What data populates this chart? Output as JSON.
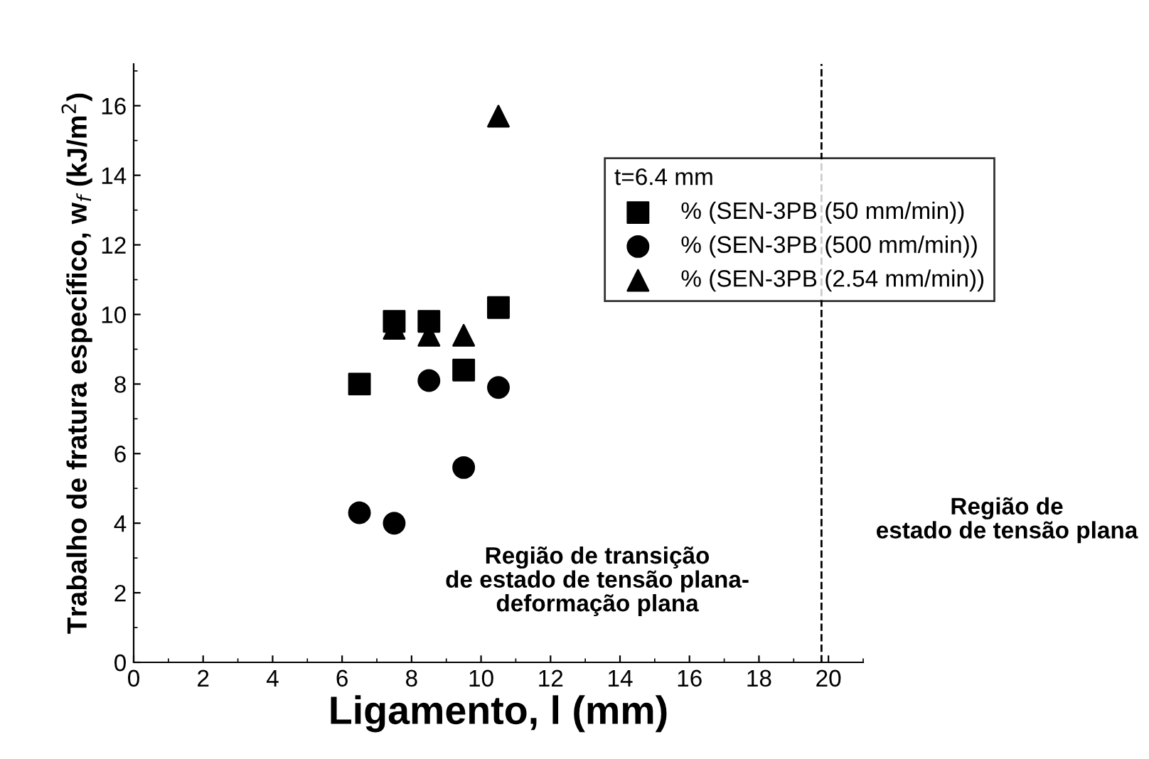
{
  "chart_data": {
    "type": "scatter",
    "xlabel": "Ligamento, l (mm)",
    "ylabel": "Trabalho de fratura específico, w$_{f}$ (kJ/m$^{2}$)",
    "legend_title": "t=6.4 mm",
    "legend": "top right",
    "series": [
      {
        "name": "% (SEN-3PB (50 mm/min))",
        "color": "#000000",
        "marker": "square",
        "x": [
          6.5,
          7.5,
          8.5,
          9.5,
          10.5
        ],
        "values": [
          8.0,
          9.8,
          9.8,
          8.4,
          10.2
        ]
      },
      {
        "name": "% (SEN-3PB (500 mm/min))",
        "color": "#000000",
        "marker": "circle",
        "x": [
          6.5,
          7.5,
          8.5,
          9.5,
          10.5
        ],
        "values": [
          4.3,
          4.0,
          8.1,
          5.6,
          7.9
        ]
      },
      {
        "name": "% (SEN-3PB (2.54 mm/min))",
        "color": "#000000",
        "marker": "triangle",
        "x": [
          7.5,
          8.5,
          9.5,
          10.5
        ],
        "values": [
          9.6,
          9.4,
          9.4,
          15.7
        ]
      }
    ],
    "xlim": [
      0,
      21
    ],
    "xticks": [
      0,
      2,
      4,
      6,
      8,
      10,
      12,
      14,
      16,
      18,
      20
    ],
    "ylim": [
      0,
      17.2
    ],
    "yticks": [
      0,
      2,
      4,
      6,
      8,
      10,
      12,
      14,
      16
    ],
    "ref_lines": [
      {
        "axis": "x",
        "value": 19.8,
        "color": "#000000",
        "line_style": "dashed"
      }
    ],
    "annotations": [
      "Região de transição\nde estado de tensão plana-\ndeformação plana",
      "Região de\nestado de tensão plana"
    ],
    "grid": false
  }
}
